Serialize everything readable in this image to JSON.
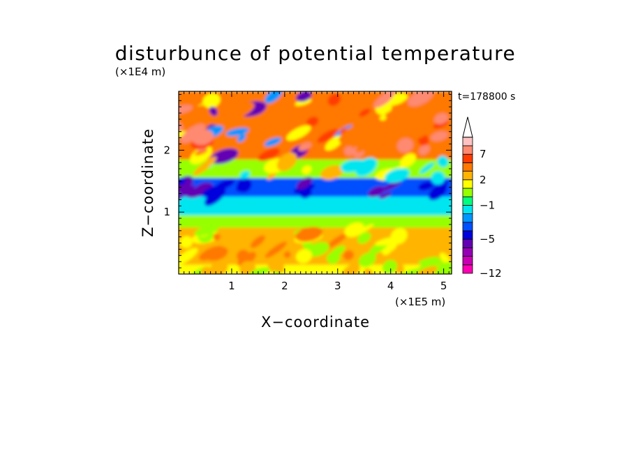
{
  "chart_data": {
    "type": "heatmap",
    "title": "disturbunce of potential temperature",
    "time_label": "t=178800 s",
    "xlabel": "X−coordinate",
    "ylabel": "Z−coordinate",
    "x_unit": "(×1E5 m)",
    "y_unit": "(×1E4 m)",
    "xlim": [
      0,
      5.15
    ],
    "ylim": [
      0,
      2.95
    ],
    "x_ticks": [
      "1",
      "2",
      "3",
      "4",
      "5"
    ],
    "y_ticks": [
      "1",
      "2"
    ],
    "colorbar": {
      "levels": [
        -12,
        -10,
        -8,
        -6,
        -5,
        -4,
        -3,
        -2,
        -1,
        0,
        1,
        2,
        3,
        5,
        7,
        9,
        11
      ],
      "tick_labels": [
        "−12",
        "−5",
        "−1",
        "2",
        "7"
      ],
      "colors": [
        "#ff00b4",
        "#c800b4",
        "#9600b4",
        "#6400b4",
        "#0000dc",
        "#0050ff",
        "#0096ff",
        "#00e6f0",
        "#00ff7f",
        "#96ff00",
        "#ffff00",
        "#ffb400",
        "#ff7800",
        "#ff3c00",
        "#ff8a72",
        "#ffc2c2"
      ],
      "extend": "max"
    },
    "bands": [
      {
        "z": [
          0.0,
          0.15
        ],
        "value": 1.5
      },
      {
        "z": [
          0.15,
          0.75
        ],
        "value": 2.5
      },
      {
        "z": [
          0.75,
          0.95
        ],
        "value": 0.5
      },
      {
        "z": [
          0.95,
          1.25
        ],
        "value": -1.5
      },
      {
        "z": [
          1.25,
          1.55
        ],
        "value": -3.5
      },
      {
        "z": [
          1.55,
          1.85
        ],
        "value": 0.5
      },
      {
        "z": [
          1.85,
          2.95
        ],
        "value": 3.5
      }
    ]
  }
}
